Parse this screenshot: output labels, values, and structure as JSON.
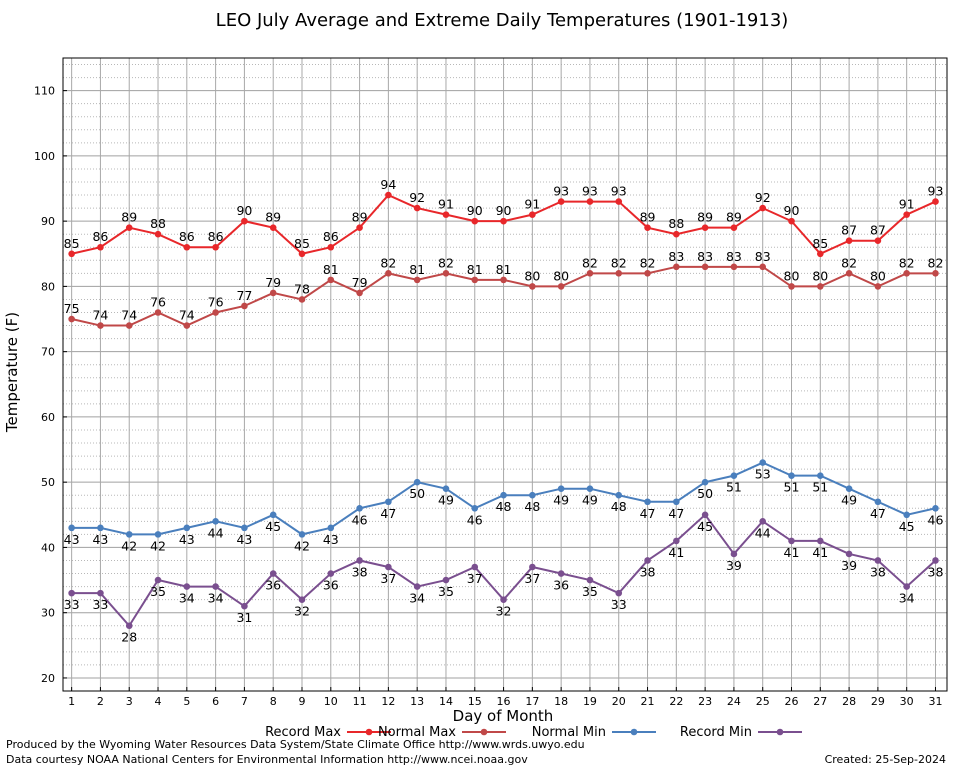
{
  "chart_data": {
    "type": "line",
    "title": "LEO July Average and Extreme Daily Temperatures (1901-1913)",
    "xlabel": "Day of Month",
    "ylabel": "Temperature (F)",
    "xlim": [
      0.7,
      31.4
    ],
    "ylim": [
      18,
      115
    ],
    "x": [
      1,
      2,
      3,
      4,
      5,
      6,
      7,
      8,
      9,
      10,
      11,
      12,
      13,
      14,
      15,
      16,
      17,
      18,
      19,
      20,
      21,
      22,
      23,
      24,
      25,
      26,
      27,
      28,
      29,
      30,
      31
    ],
    "yticks": [
      20,
      30,
      40,
      50,
      60,
      70,
      80,
      90,
      100,
      110
    ],
    "grid": true,
    "legend_position": "bottom",
    "series": [
      {
        "name": "Record Max",
        "color": "#e8272a",
        "values": [
          85,
          86,
          89,
          88,
          86,
          86,
          90,
          89,
          85,
          86,
          89,
          94,
          92,
          91,
          90,
          90,
          91,
          93,
          93,
          93,
          89,
          88,
          89,
          89,
          92,
          90,
          85,
          87,
          87,
          91,
          93
        ]
      },
      {
        "name": "Normal Max",
        "color": "#c04848",
        "values": [
          75,
          74,
          74,
          76,
          74,
          76,
          77,
          79,
          78,
          81,
          79,
          82,
          81,
          82,
          81,
          81,
          80,
          80,
          82,
          82,
          82,
          83,
          83,
          83,
          83,
          80,
          80,
          82,
          80,
          82,
          82
        ]
      },
      {
        "name": "Normal Min",
        "color": "#4a7fbd",
        "values": [
          43,
          43,
          42,
          42,
          43,
          44,
          43,
          45,
          42,
          43,
          46,
          47,
          50,
          49,
          46,
          48,
          48,
          49,
          49,
          48,
          47,
          47,
          50,
          51,
          53,
          51,
          51,
          49,
          47,
          45,
          46
        ]
      },
      {
        "name": "Record Min",
        "color": "#7a4f8f",
        "values": [
          33,
          33,
          28,
          35,
          34,
          34,
          31,
          36,
          32,
          36,
          38,
          37,
          34,
          35,
          37,
          32,
          37,
          36,
          35,
          33,
          38,
          41,
          45,
          39,
          44,
          41,
          41,
          39,
          38,
          34,
          38
        ]
      }
    ]
  },
  "footer": {
    "produced_by": "Produced by the Wyoming Water Resources Data System/State Climate Office http://www.wrds.uwyo.edu",
    "data_courtesy": "Data courtesy NOAA National Centers for Environmental Information http://www.ncei.noaa.gov",
    "created": "Created:  25-Sep-2024"
  }
}
